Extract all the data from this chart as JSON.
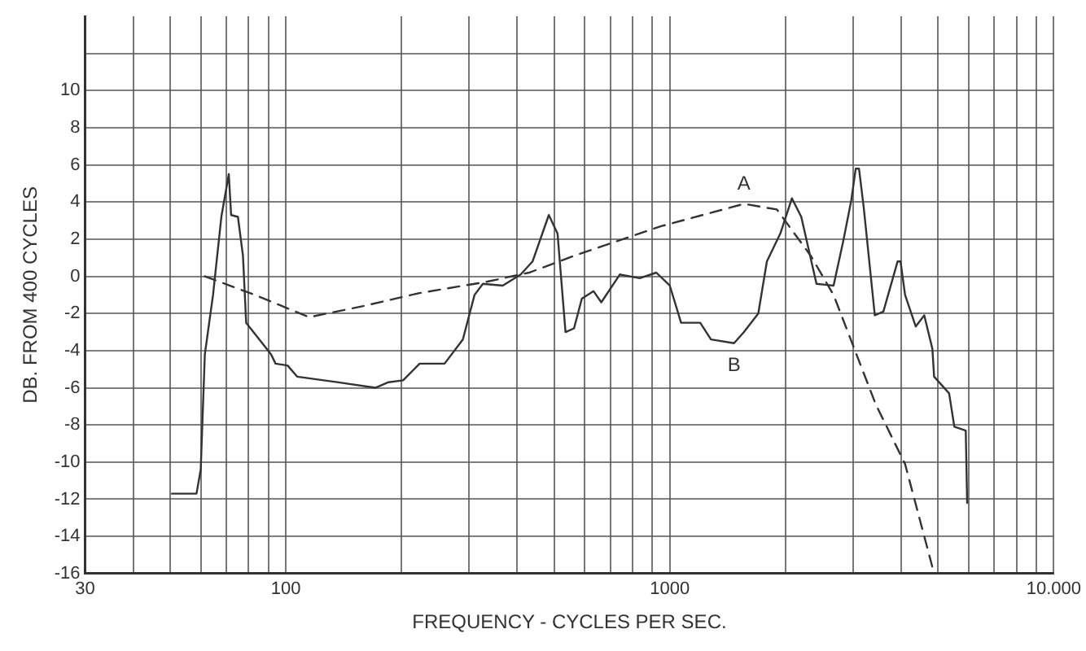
{
  "chart_data": {
    "type": "line",
    "xlabel": "FREQUENCY - CYCLES PER SEC.",
    "ylabel": "DB. FROM 400 CYCLES",
    "log": "x",
    "grid": true,
    "marker": "none",
    "xlim": [
      30,
      10000
    ],
    "ylim": [
      -16,
      14
    ],
    "xticks": [
      30,
      {
        "value": 40,
        "label": null
      },
      {
        "value": 50,
        "label": null
      },
      {
        "value": 60,
        "label": null
      },
      {
        "value": 70,
        "label": null
      },
      {
        "value": 80,
        "label": null
      },
      {
        "value": 90,
        "label": null
      },
      100,
      {
        "value": 200,
        "label": null
      },
      {
        "value": 300,
        "label": null
      },
      {
        "value": 400,
        "label": null
      },
      {
        "value": 500,
        "label": null
      },
      {
        "value": 600,
        "label": null
      },
      {
        "value": 700,
        "label": null
      },
      {
        "value": 800,
        "label": null
      },
      {
        "value": 900,
        "label": null
      },
      1000,
      {
        "value": 2000,
        "label": null
      },
      {
        "value": 3000,
        "label": null
      },
      {
        "value": 4000,
        "label": null
      },
      {
        "value": 5000,
        "label": null
      },
      {
        "value": 6000,
        "label": null
      },
      {
        "value": 7000,
        "label": null
      },
      {
        "value": 8000,
        "label": null
      },
      {
        "value": 9000,
        "label": null
      },
      {
        "value": 10000,
        "label": "10.000"
      }
    ],
    "yticks": [
      -16,
      -14,
      -12,
      -10,
      -8,
      -6,
      -4,
      -2,
      0,
      2,
      4,
      6,
      8,
      10,
      {
        "value": 12,
        "label": null
      }
    ],
    "series": [
      {
        "color": "#333333",
        "line_style": "solid",
        "x": [
          50.5,
          58.5,
          60,
          61.5,
          64.6,
          67.9,
          71,
          72,
          75,
          77.3,
          78.8,
          85.3,
          91.5,
          94,
          101,
          107,
          136,
          171,
          185,
          202,
          223,
          259,
          289,
          310,
          326,
          367,
          409,
          439,
          484,
          510,
          535,
          563,
          590,
          633,
          663,
          741,
          835,
          922,
          1000,
          1070,
          1200,
          1280,
          1470,
          1560,
          1700,
          1790,
          1940,
          2080,
          2200,
          2410,
          2670,
          2830,
          2970,
          3050,
          3110,
          3200,
          3420,
          3600,
          3920,
          3990,
          4100,
          4370,
          4600,
          4830,
          4880,
          5340,
          5510,
          5900,
          5950
        ],
        "values": [
          -11.7,
          -11.7,
          -10.4,
          -4.2,
          -1,
          3.2,
          5.5,
          3.3,
          3.2,
          1.1,
          -2.5,
          -3.4,
          -4.2,
          -4.7,
          -4.8,
          -5.4,
          -5.7,
          -6,
          -5.7,
          -5.6,
          -4.7,
          -4.7,
          -3.4,
          -1,
          -0.4,
          -0.5,
          0.1,
          0.8,
          3.3,
          2.3,
          -3,
          -2.8,
          -1.2,
          -0.8,
          -1.4,
          0.1,
          -0.1,
          0.2,
          -0.5,
          -2.5,
          -2.5,
          -3.4,
          -3.6,
          -3,
          -2,
          0.8,
          2.3,
          4.2,
          3.2,
          -0.4,
          -0.5,
          1.9,
          4.1,
          5.8,
          5.8,
          3.7,
          -2.1,
          -1.9,
          0.8,
          0.8,
          -1,
          -2.7,
          -2.1,
          -3.9,
          -5.4,
          -6.3,
          -8.1,
          -8.3,
          -12.2
        ]
      },
      {
        "color": "#333333",
        "line_style": "dashed",
        "x": [
          61.5,
          83,
          115,
          159,
          223,
          332,
          430,
          580,
          950,
          1560,
          1900,
          2330,
          2670,
          3440,
          4100,
          4880
        ],
        "values": [
          0,
          -1,
          -2.2,
          -1.6,
          -0.9,
          -0.3,
          0.2,
          1.2,
          2.7,
          3.9,
          3.6,
          1.1,
          -1,
          -6.9,
          -10.1,
          -16
        ]
      }
    ],
    "annotations": [
      {
        "text": "A",
        "x": 1560,
        "y": 3.9
      },
      {
        "text": "B",
        "x": 1470,
        "y": -3.6
      }
    ]
  }
}
